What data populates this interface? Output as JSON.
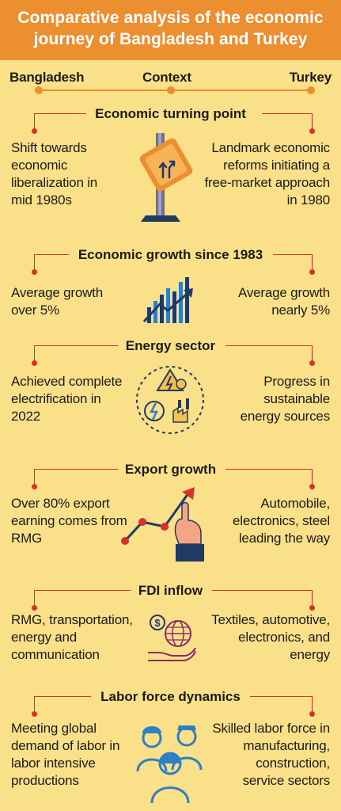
{
  "title": "Comparative analysis of the economic journey of Bangladesh and Turkey",
  "header": {
    "left": "Bangladesh",
    "center": "Context",
    "right": "Turkey"
  },
  "sections": [
    {
      "title": "Economic turning point",
      "bangladesh": "Shift towards economic liberalization in mid 1980s",
      "turkey": "Landmark economic reforms initiating a free-market approach in 1980",
      "icon": "road-sign-icon"
    },
    {
      "title": "Economic growth since 1983",
      "bangladesh": "Average growth over 5%",
      "turkey": "Average growth nearly 5%",
      "icon": "growth-chart-icon"
    },
    {
      "title": "Energy sector",
      "bangladesh": "Achieved complete electrification in 2022",
      "turkey": "Progress in sustainable energy sources",
      "icon": "energy-icon"
    },
    {
      "title": "Export growth",
      "bangladesh": "Over 80% export earning comes from RMG",
      "turkey": "Automobile, electronics, steel leading the way",
      "icon": "export-growth-icon"
    },
    {
      "title": "FDI inflow",
      "bangladesh": "RMG, transportation, energy and communication",
      "turkey": "Textiles, automotive, electronics, and energy",
      "icon": "globe-money-icon"
    },
    {
      "title": "Labor force dynamics",
      "bangladesh": "Meeting global demand of labor in labor intensive productions",
      "turkey": "Skilled labor force in manufacturing, construction, service sectors",
      "icon": "workers-icon"
    }
  ],
  "colors": {
    "background": "#fbe08a",
    "banner": "#ec8f31",
    "accent_red": "#d6322c",
    "navy": "#1f3a63",
    "blue": "#2f7fc4"
  }
}
